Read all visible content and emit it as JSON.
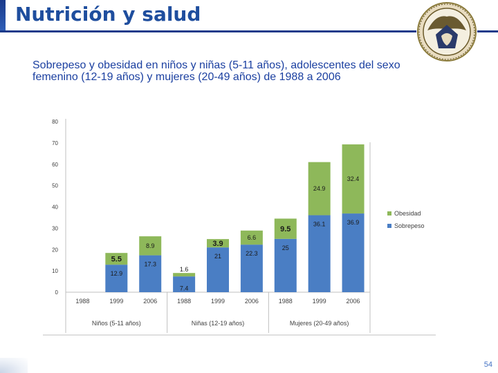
{
  "header": {
    "title": "Nutrición y salud"
  },
  "subtitle": "Sobrepeso y obesidad en niños y niñas (5-11 años), adolescentes del sexo femenino (12-19 años) y mujeres (20-49 años) de 1988 a 2006",
  "page_number": "54",
  "colors": {
    "sobrepeso": "#4a7ec4",
    "obesidad": "#8eb85a",
    "title": "#1f4e9e",
    "subtitle": "#1a3fa0"
  },
  "chart_data": {
    "type": "bar",
    "stacked": true,
    "ylim": [
      0,
      80
    ],
    "yticks": [
      0,
      10,
      20,
      30,
      40,
      50,
      60,
      70,
      80
    ],
    "categories": [
      "1988",
      "1999",
      "2006",
      "1988",
      "1999",
      "2006",
      "1988",
      "1999",
      "2006"
    ],
    "groups": [
      {
        "label": "Niños (5-11 años)",
        "count": 3
      },
      {
        "label": "Niñas (12-19 años)",
        "count": 3
      },
      {
        "label": "Mujeres (20-49 años)",
        "count": 3
      }
    ],
    "series": [
      {
        "name": "Sobrepeso",
        "values": [
          null,
          12.9,
          17.3,
          7.4,
          21,
          22.3,
          25,
          36.1,
          36.9
        ]
      },
      {
        "name": "Obesidad",
        "values": [
          null,
          5.5,
          8.9,
          1.6,
          3.9,
          6.6,
          9.5,
          24.9,
          32.4
        ]
      }
    ],
    "legend_position": "right",
    "legend": [
      "Obesidad",
      "Sobrepeso"
    ]
  }
}
